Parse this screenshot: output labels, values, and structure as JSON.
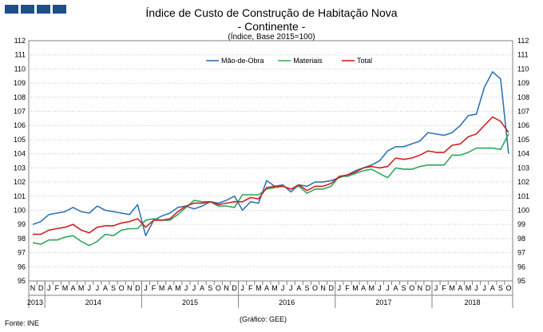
{
  "header": {
    "logo_name": "gee-logo",
    "title": "Índice de Custo de Construção de Habitação Nova",
    "subtitle": "- Continente -",
    "unit": "(Índice, Base 2015=100)"
  },
  "footer": {
    "source": "Fonte: INE",
    "credit": "(Gráfico: GEE)"
  },
  "chart_data": {
    "type": "line",
    "title": "Índice de Custo de Construção de Habitação Nova",
    "subtitle": "- Continente -",
    "ylabel": "",
    "xlabel": "",
    "ylim": [
      95,
      112
    ],
    "yticks": [
      95,
      96,
      97,
      98,
      99,
      100,
      101,
      102,
      103,
      104,
      105,
      106,
      107,
      108,
      109,
      110,
      111,
      112
    ],
    "grid": true,
    "legend_position": "top-center",
    "x_month_labels": [
      "N",
      "D",
      "J",
      "F",
      "M",
      "A",
      "M",
      "J",
      "J",
      "A",
      "S",
      "O",
      "N",
      "D",
      "J",
      "F",
      "M",
      "A",
      "M",
      "J",
      "J",
      "A",
      "S",
      "O",
      "N",
      "D",
      "J",
      "F",
      "M",
      "A",
      "M",
      "J",
      "J",
      "A",
      "S",
      "O",
      "N",
      "D",
      "J",
      "F",
      "M",
      "A",
      "M",
      "J",
      "J",
      "A",
      "S",
      "O",
      "N",
      "D",
      "J",
      "F",
      "M",
      "A",
      "M",
      "J",
      "J",
      "A",
      "S",
      "O"
    ],
    "years": [
      {
        "label": "2013",
        "start": 0,
        "end": 2
      },
      {
        "label": "2014",
        "start": 2,
        "end": 14
      },
      {
        "label": "2015",
        "start": 14,
        "end": 26
      },
      {
        "label": "2016",
        "start": 26,
        "end": 38
      },
      {
        "label": "2017",
        "start": 38,
        "end": 50
      },
      {
        "label": "2018",
        "start": 50,
        "end": 60
      }
    ],
    "series": [
      {
        "name": "Mão-de-Obra",
        "color": "#2e75b6",
        "values": [
          99.0,
          99.2,
          99.7,
          99.8,
          99.9,
          100.2,
          99.9,
          99.8,
          100.3,
          100.0,
          99.9,
          99.8,
          99.7,
          100.4,
          98.2,
          99.3,
          99.6,
          99.8,
          100.2,
          100.3,
          100.1,
          100.3,
          100.6,
          100.5,
          100.7,
          101.0,
          100.0,
          100.6,
          100.5,
          102.1,
          101.7,
          101.8,
          101.3,
          101.8,
          101.7,
          102.0,
          102.0,
          102.1,
          102.3,
          102.5,
          102.8,
          103.0,
          103.2,
          103.5,
          104.2,
          104.5,
          104.5,
          104.7,
          104.9,
          105.5,
          105.4,
          105.3,
          105.5,
          106.0,
          106.7,
          106.8,
          108.7,
          109.8,
          109.3,
          104.0
        ]
      },
      {
        "name": "Materiais",
        "color": "#2ea85a",
        "values": [
          97.7,
          97.6,
          97.9,
          97.9,
          98.1,
          98.2,
          97.8,
          97.5,
          97.8,
          98.3,
          98.2,
          98.6,
          98.7,
          98.7,
          99.3,
          99.4,
          99.3,
          99.3,
          99.7,
          100.2,
          100.7,
          100.6,
          100.6,
          100.3,
          100.3,
          100.2,
          101.1,
          101.1,
          101.1,
          101.5,
          101.6,
          101.7,
          101.5,
          101.7,
          101.2,
          101.5,
          101.5,
          101.7,
          102.4,
          102.4,
          102.6,
          102.8,
          102.9,
          102.6,
          102.3,
          103.0,
          102.9,
          102.9,
          103.1,
          103.2,
          103.2,
          103.2,
          103.9,
          103.9,
          104.1,
          104.4,
          104.4,
          104.4,
          104.3,
          105.4
        ]
      },
      {
        "name": "Total",
        "color": "#cc2222",
        "values": [
          98.3,
          98.3,
          98.6,
          98.7,
          98.8,
          99.0,
          98.6,
          98.4,
          98.8,
          98.9,
          98.9,
          99.1,
          99.2,
          99.4,
          98.8,
          99.3,
          99.3,
          99.4,
          99.9,
          100.3,
          100.5,
          100.5,
          100.6,
          100.4,
          100.5,
          100.6,
          100.6,
          100.9,
          100.8,
          101.6,
          101.7,
          101.7,
          101.5,
          101.8,
          101.4,
          101.7,
          101.7,
          101.9,
          102.4,
          102.5,
          102.7,
          103.0,
          103.1,
          103.0,
          103.1,
          103.7,
          103.6,
          103.7,
          103.9,
          104.2,
          104.1,
          104.1,
          104.6,
          104.7,
          105.2,
          105.4,
          106.0,
          106.6,
          106.3,
          105.5
        ]
      }
    ]
  }
}
